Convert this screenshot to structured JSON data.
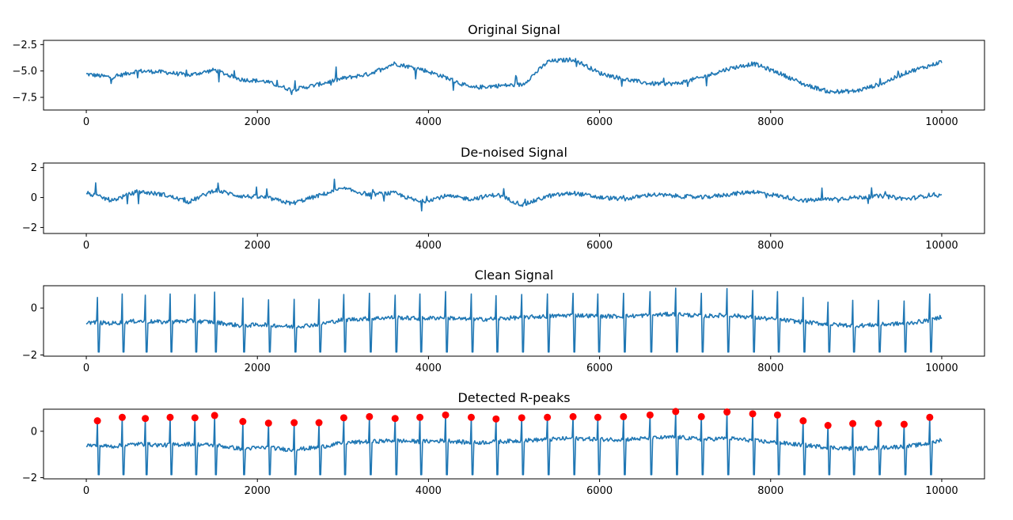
{
  "colors": {
    "line": "#1f77b4",
    "peaks": "#ff0000",
    "axes": "#000000"
  },
  "chart_data": [
    {
      "type": "line",
      "title": "Original Signal",
      "xlim": [
        -500,
        10500
      ],
      "ylim": [
        -8.7,
        -2.1
      ],
      "xticks": [
        0,
        2000,
        4000,
        6000,
        8000,
        10000
      ],
      "xtick_labels": [
        "0",
        "2000",
        "4000",
        "6000",
        "8000",
        "10000"
      ],
      "yticks": [
        -2.5,
        -5.0,
        -7.5
      ],
      "ytick_labels": [
        "−2.5",
        "−5.0",
        "−7.5"
      ],
      "series": [
        {
          "x": [
            0,
            300,
            600,
            900,
            1200,
            1500,
            1800,
            2100,
            2400,
            2700,
            3000,
            3300,
            3600,
            3900,
            4200,
            4500,
            4800,
            5100,
            5400,
            5700,
            6000,
            6300,
            6600,
            6900,
            7200,
            7500,
            7800,
            8100,
            8400,
            8700,
            9000,
            9300,
            9600,
            9900,
            10000
          ],
          "y": [
            -5.3,
            -5.6,
            -5.0,
            -5.1,
            -5.4,
            -4.9,
            -5.8,
            -6.0,
            -6.8,
            -6.3,
            -5.7,
            -5.3,
            -4.3,
            -4.8,
            -5.6,
            -6.6,
            -6.4,
            -6.3,
            -4.1,
            -3.9,
            -5.2,
            -5.8,
            -6.2,
            -6.2,
            -5.6,
            -4.8,
            -4.3,
            -5.2,
            -6.3,
            -7.0,
            -6.9,
            -6.2,
            -5.1,
            -4.4,
            -4.1
          ]
        }
      ]
    },
    {
      "type": "line",
      "title": "De-noised Signal",
      "xlim": [
        -500,
        10500
      ],
      "ylim": [
        -2.4,
        2.3
      ],
      "xticks": [
        0,
        2000,
        4000,
        6000,
        8000,
        10000
      ],
      "xtick_labels": [
        "0",
        "2000",
        "4000",
        "6000",
        "8000",
        "10000"
      ],
      "yticks": [
        2,
        0,
        -2
      ],
      "ytick_labels": [
        "2",
        "0",
        "−2"
      ],
      "series": [
        {
          "x": [
            0,
            300,
            600,
            900,
            1200,
            1500,
            1800,
            2100,
            2400,
            2700,
            3000,
            3300,
            3600,
            3900,
            4200,
            4500,
            4800,
            5100,
            5400,
            5700,
            6000,
            6300,
            6600,
            6900,
            7200,
            7500,
            7800,
            8100,
            8400,
            8700,
            9000,
            9300,
            9600,
            9900,
            10000
          ],
          "y": [
            0.3,
            -0.2,
            0.4,
            0.2,
            -0.3,
            0.5,
            0.1,
            0.0,
            -0.4,
            0.1,
            0.6,
            0.2,
            0.3,
            -0.3,
            0.1,
            -0.1,
            0.2,
            -0.5,
            0.1,
            0.3,
            0.0,
            -0.1,
            0.2,
            0.1,
            0.0,
            0.2,
            0.4,
            0.1,
            -0.2,
            -0.1,
            0.0,
            0.1,
            -0.1,
            0.2,
            0.1
          ]
        }
      ]
    },
    {
      "type": "line",
      "title": "Clean Signal",
      "xlim": [
        -500,
        10500
      ],
      "ylim": [
        -2.05,
        0.95
      ],
      "xticks": [
        0,
        2000,
        4000,
        6000,
        8000,
        10000
      ],
      "xtick_labels": [
        "0",
        "2000",
        "4000",
        "6000",
        "8000",
        "10000"
      ],
      "yticks": [
        0,
        -2
      ],
      "ytick_labels": [
        "0",
        "−2"
      ],
      "series": [
        {
          "x": [
            0,
            300,
            600,
            900,
            1200,
            1500,
            1800,
            2100,
            2400,
            2700,
            3000,
            3300,
            3600,
            3900,
            4200,
            4500,
            4800,
            5100,
            5400,
            5700,
            6000,
            6300,
            6600,
            6900,
            7200,
            7500,
            7800,
            8100,
            8400,
            8700,
            9000,
            9300,
            9600,
            9900,
            10000
          ],
          "y": [
            -0.6,
            -0.65,
            -0.55,
            -0.6,
            -0.55,
            -0.6,
            -0.75,
            -0.7,
            -0.8,
            -0.7,
            -0.5,
            -0.45,
            -0.4,
            -0.45,
            -0.4,
            -0.5,
            -0.45,
            -0.4,
            -0.35,
            -0.3,
            -0.35,
            -0.35,
            -0.3,
            -0.25,
            -0.35,
            -0.3,
            -0.4,
            -0.5,
            -0.6,
            -0.7,
            -0.75,
            -0.7,
            -0.65,
            -0.5,
            -0.35
          ]
        }
      ],
      "r_peaks": {
        "x": [
          130,
          420,
          690,
          980,
          1270,
          1500,
          1830,
          2130,
          2430,
          2720,
          3010,
          3310,
          3610,
          3900,
          4200,
          4500,
          4790,
          5090,
          5390,
          5690,
          5980,
          6280,
          6590,
          6890,
          7190,
          7490,
          7790,
          8080,
          8380,
          8670,
          8960,
          9260,
          9560,
          9860
        ],
        "y": [
          0.45,
          0.6,
          0.55,
          0.6,
          0.58,
          0.68,
          0.42,
          0.35,
          0.37,
          0.37,
          0.58,
          0.63,
          0.55,
          0.6,
          0.7,
          0.6,
          0.53,
          0.58,
          0.6,
          0.63,
          0.6,
          0.63,
          0.7,
          0.85,
          0.63,
          0.83,
          0.75,
          0.7,
          0.45,
          0.25,
          0.33,
          0.33,
          0.3,
          0.6
        ]
      }
    },
    {
      "type": "scatter",
      "title": "Detected R-peaks",
      "xlim": [
        -500,
        10500
      ],
      "ylim": [
        -2.05,
        0.95
      ],
      "xticks": [
        0,
        2000,
        4000,
        6000,
        8000,
        10000
      ],
      "xtick_labels": [
        "0",
        "2000",
        "4000",
        "6000",
        "8000",
        "10000"
      ],
      "yticks": [
        0,
        -2
      ],
      "ytick_labels": [
        "0",
        "−2"
      ],
      "series": [
        {
          "x": [
            0,
            300,
            600,
            900,
            1200,
            1500,
            1800,
            2100,
            2400,
            2700,
            3000,
            3300,
            3600,
            3900,
            4200,
            4500,
            4800,
            5100,
            5400,
            5700,
            6000,
            6300,
            6600,
            6900,
            7200,
            7500,
            7800,
            8100,
            8400,
            8700,
            9000,
            9300,
            9600,
            9900,
            10000
          ],
          "y": [
            -0.6,
            -0.65,
            -0.55,
            -0.6,
            -0.55,
            -0.6,
            -0.75,
            -0.7,
            -0.8,
            -0.7,
            -0.5,
            -0.45,
            -0.4,
            -0.45,
            -0.4,
            -0.5,
            -0.45,
            -0.4,
            -0.35,
            -0.3,
            -0.35,
            -0.35,
            -0.3,
            -0.25,
            -0.35,
            -0.3,
            -0.4,
            -0.5,
            -0.6,
            -0.7,
            -0.75,
            -0.7,
            -0.65,
            -0.5,
            -0.35
          ]
        }
      ],
      "r_peaks": {
        "x": [
          130,
          420,
          690,
          980,
          1270,
          1500,
          1830,
          2130,
          2430,
          2720,
          3010,
          3310,
          3610,
          3900,
          4200,
          4500,
          4790,
          5090,
          5390,
          5690,
          5980,
          6280,
          6590,
          6890,
          7190,
          7490,
          7790,
          8080,
          8380,
          8670,
          8960,
          9260,
          9560,
          9860
        ],
        "y": [
          0.45,
          0.6,
          0.55,
          0.6,
          0.58,
          0.68,
          0.42,
          0.35,
          0.37,
          0.37,
          0.58,
          0.63,
          0.55,
          0.6,
          0.7,
          0.6,
          0.53,
          0.58,
          0.6,
          0.63,
          0.6,
          0.63,
          0.7,
          0.85,
          0.63,
          0.83,
          0.75,
          0.7,
          0.45,
          0.25,
          0.33,
          0.33,
          0.3,
          0.6
        ]
      }
    }
  ]
}
